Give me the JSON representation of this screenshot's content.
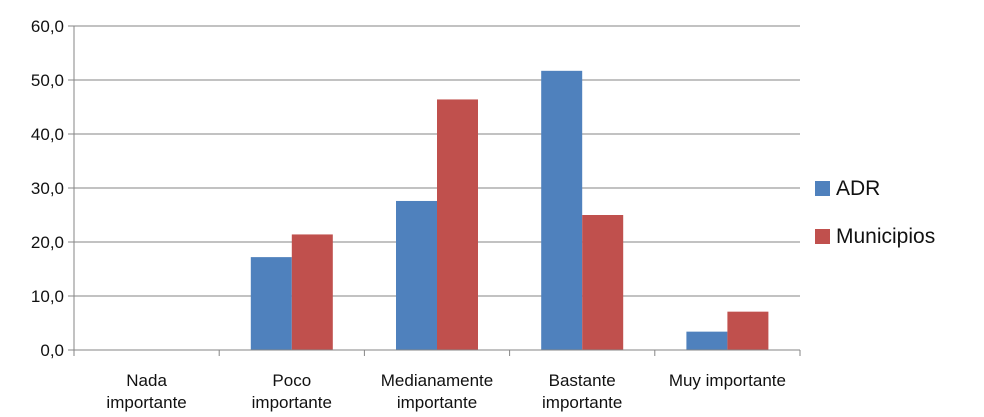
{
  "chart_data": {
    "type": "bar",
    "categories": [
      [
        "Nada",
        "importante"
      ],
      [
        "Poco",
        "importante"
      ],
      [
        "Medianamente",
        "importante"
      ],
      [
        "Bastante",
        "importante"
      ],
      [
        "Muy importante"
      ]
    ],
    "series": [
      {
        "name": "ADR",
        "color": "#4F81BD",
        "values": [
          0.0,
          17.2,
          27.6,
          51.7,
          3.4
        ]
      },
      {
        "name": "Municipios",
        "color": "#C0504D",
        "values": [
          0.0,
          21.4,
          46.4,
          25.0,
          7.1
        ]
      }
    ],
    "ylim": [
      0,
      60
    ],
    "y_ticks": [
      0,
      10,
      20,
      30,
      40,
      50,
      60
    ],
    "y_tick_labels": [
      "0,0",
      "10,0",
      "20,0",
      "30,0",
      "40,0",
      "50,0",
      "60,0"
    ],
    "grid": true,
    "legend_position": "right",
    "axis_color": "#868686",
    "grid_color": "#868686"
  }
}
